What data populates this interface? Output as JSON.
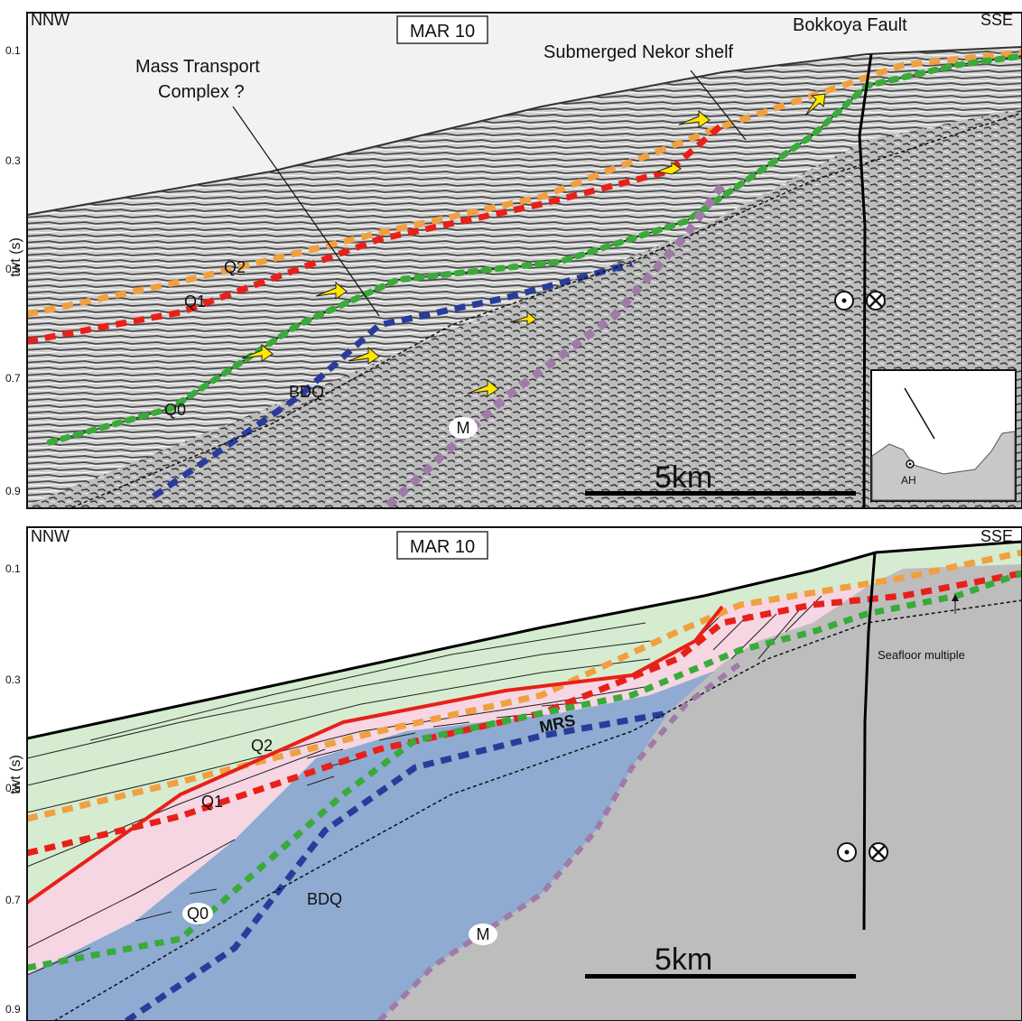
{
  "top_panel": {
    "left_label": "NNW",
    "right_label": "SSE",
    "section_label": "MAR 10",
    "fault_label": "Bokkoya Fault",
    "mtc_label_line1": "Mass Transport",
    "mtc_label_line2": "Complex ?",
    "shelf_label": "Submerged Nekor shelf",
    "axis_label": "twt (s)",
    "ticks": [
      "0.1",
      "0.3",
      "0.5",
      "0.7",
      "0.9"
    ],
    "horizons": {
      "q2": "Q2",
      "q1": "Q1",
      "q0": "Q0",
      "bdq": "BDQ",
      "m": "M"
    },
    "scale_label": "5km",
    "inset_label": "AH"
  },
  "bottom_panel": {
    "left_label": "NNW",
    "right_label": "SSE",
    "section_label": "MAR 10",
    "axis_label": "twt (s)",
    "ticks": [
      "0.1",
      "0.3",
      "0.5",
      "0.7",
      "0.9"
    ],
    "horizons": {
      "q2": "Q2",
      "q1": "Q1",
      "q0": "Q0",
      "bdq": "BDQ",
      "m": "M",
      "mrs": "MRS"
    },
    "multiple_label": "Seafloor multiple",
    "scale_label": "5km"
  },
  "colors": {
    "q2": "#f0a040",
    "q1": "#e8201a",
    "q0": "#3aaa3a",
    "bdq": "#2a3c9a",
    "m": "#a07aa8",
    "upper_unit": "#d6ecd0",
    "mrs_unit": "#f5d6e2",
    "lower_unit": "#8fabd2",
    "basement": "#bdbdbd",
    "seismic": "#c4c4c4",
    "arrow": "#ffe600"
  }
}
